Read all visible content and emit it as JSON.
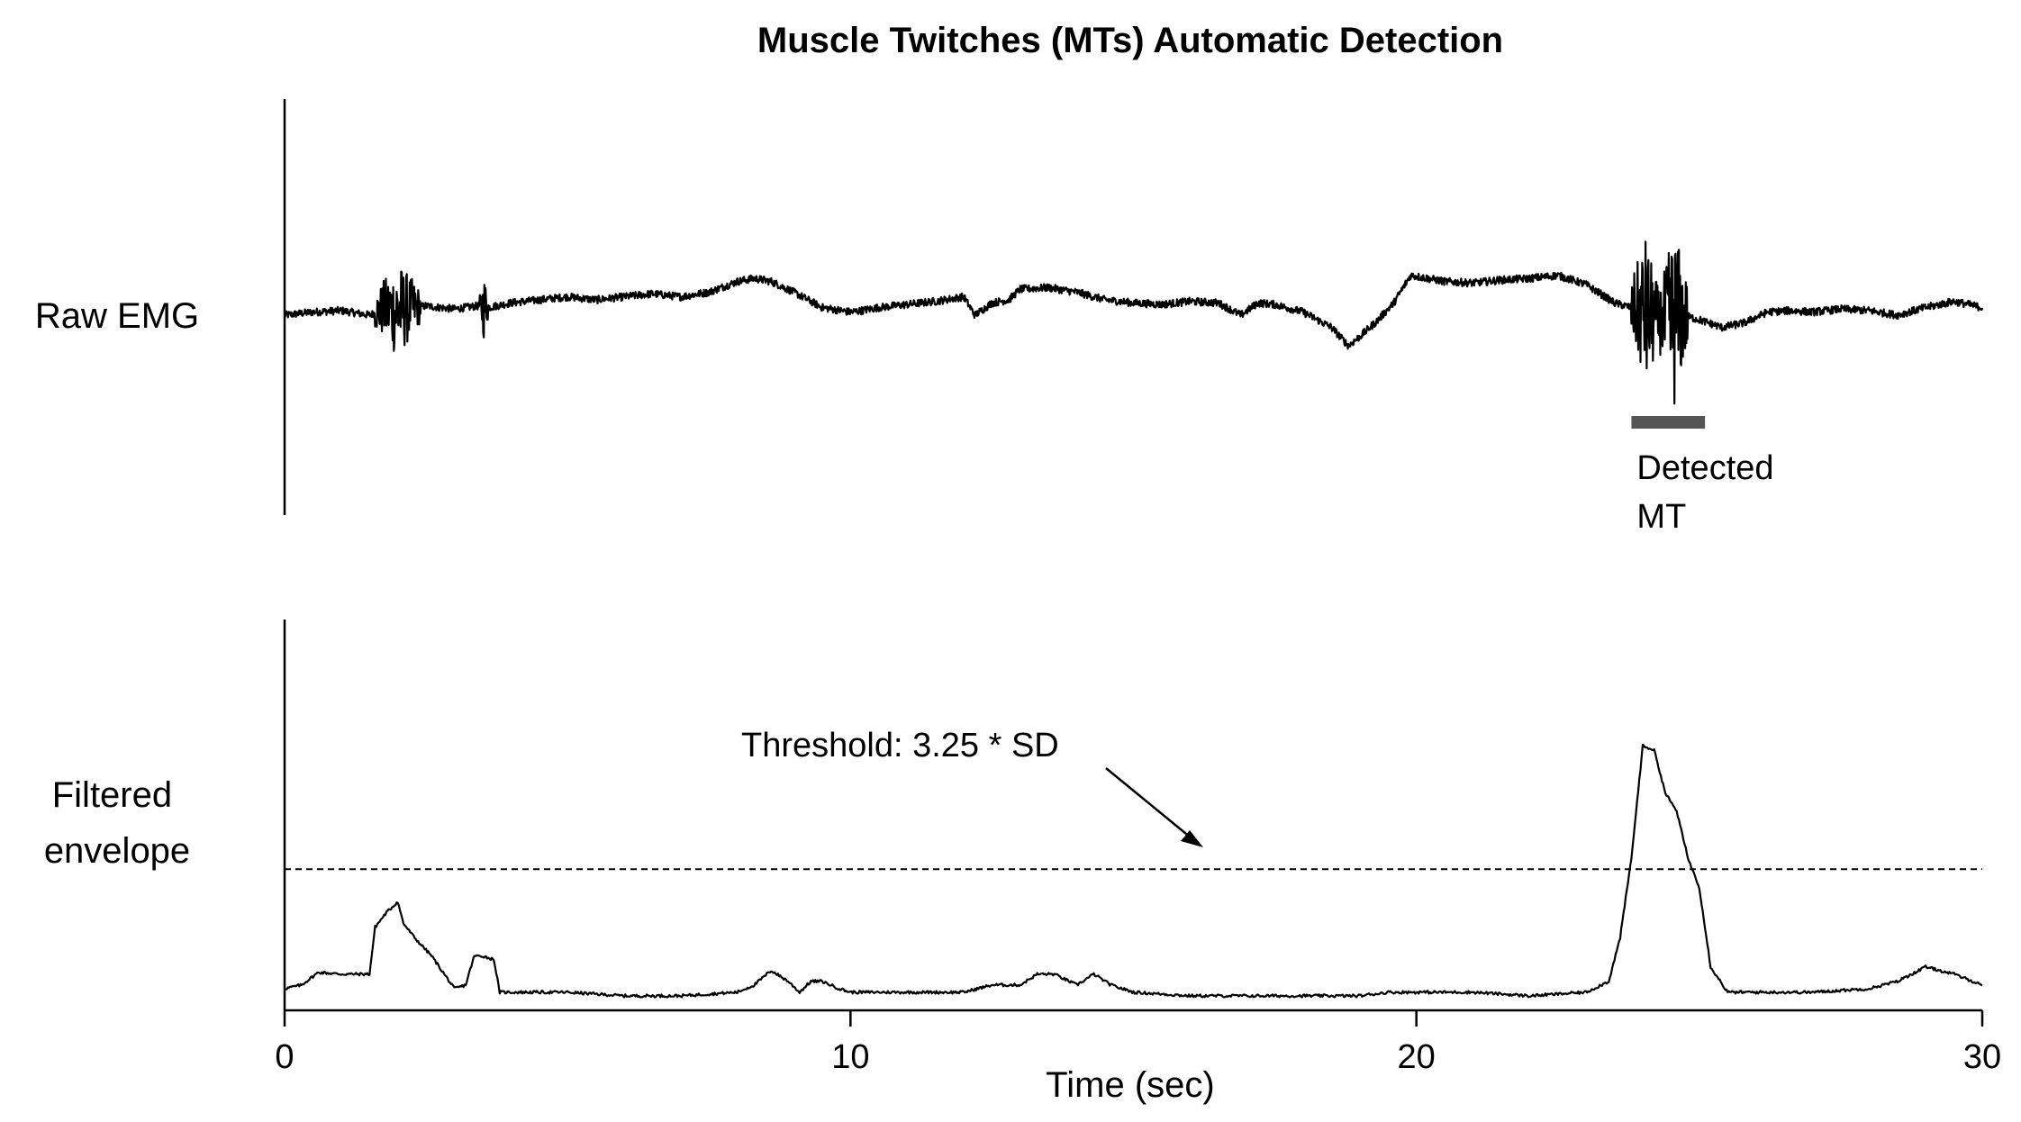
{
  "chart_data": {
    "type": "line",
    "title": "Muscle Twitches (MTs) Automatic Detection",
    "xlabel": "Time (sec)",
    "xlim": [
      0,
      30
    ],
    "xticks": [
      "0",
      "10",
      "20",
      "30"
    ],
    "panels": [
      {
        "label_lines": [
          "Raw EMG"
        ],
        "ylim": [
          -1,
          1
        ],
        "annotation": {
          "label_lines": [
            "Detected",
            "MT"
          ],
          "x_start": 23.8,
          "x_end": 25.1,
          "bar_color": "#555555"
        },
        "series": {
          "x": [
            0,
            0.5,
            1.0,
            1.5,
            1.75,
            2.0,
            2.25,
            2.5,
            3.0,
            3.4,
            3.6,
            4.0,
            4.5,
            5.0,
            5.5,
            6.0,
            6.5,
            7.0,
            7.5,
            8.0,
            8.3,
            8.6,
            9.0,
            9.5,
            10.0,
            10.2,
            10.5,
            11.0,
            11.5,
            12.0,
            12.2,
            12.5,
            12.8,
            13.0,
            13.5,
            14.0,
            14.5,
            15.0,
            15.5,
            16.0,
            16.5,
            16.9,
            17.2,
            17.5,
            18.0,
            18.5,
            18.8,
            19.0,
            19.3,
            19.6,
            19.9,
            20.5,
            21.0,
            21.5,
            22.0,
            22.5,
            23.0,
            23.5,
            23.8,
            24.1,
            24.4,
            24.7,
            25.0,
            25.4,
            25.8,
            26.2,
            26.6,
            27.0,
            27.5,
            28.0,
            28.5,
            29.0,
            29.5,
            30.0
          ],
          "y": [
            0.0,
            0.02,
            0.03,
            0.0,
            0.04,
            0.03,
            0.05,
            0.06,
            0.04,
            0.06,
            0.05,
            0.08,
            0.1,
            0.12,
            0.1,
            0.12,
            0.14,
            0.12,
            0.15,
            0.22,
            0.24,
            0.22,
            0.15,
            0.05,
            0.02,
            0.03,
            0.05,
            0.07,
            0.09,
            0.12,
            0.0,
            0.08,
            0.1,
            0.17,
            0.18,
            0.15,
            0.1,
            0.08,
            0.07,
            0.09,
            0.08,
            0.0,
            0.08,
            0.07,
            0.02,
            -0.08,
            -0.2,
            -0.14,
            -0.04,
            0.08,
            0.26,
            0.22,
            0.21,
            0.23,
            0.24,
            0.26,
            0.2,
            0.08,
            0.05,
            0.0,
            -0.05,
            0.0,
            -0.03,
            -0.08,
            -0.05,
            0.02,
            0.03,
            0.02,
            0.04,
            0.03,
            0.0,
            0.05,
            0.09,
            0.05
          ]
        },
        "bursts": [
          {
            "x_start": 1.6,
            "x_end": 2.4,
            "amplitude": 0.32
          },
          {
            "x_start": 3.45,
            "x_end": 3.6,
            "amplitude": 0.22
          },
          {
            "x_start": 23.8,
            "x_end": 24.3,
            "amplitude": 0.5
          },
          {
            "x_start": 24.3,
            "x_end": 24.8,
            "amplitude": 0.6
          }
        ]
      },
      {
        "label_lines": [
          "Filtered",
          "envelope"
        ],
        "ylim": [
          0,
          1
        ],
        "threshold": {
          "value": 0.39,
          "label": "Threshold: 3.25 * SD"
        },
        "series": {
          "x": [
            0,
            0.3,
            0.6,
            1.0,
            1.3,
            1.5,
            1.6,
            1.8,
            2.0,
            2.1,
            2.3,
            2.6,
            3.0,
            3.2,
            3.35,
            3.5,
            3.7,
            3.8,
            4.0,
            5.0,
            6.0,
            7.0,
            8.0,
            8.3,
            8.6,
            8.9,
            9.1,
            9.3,
            9.5,
            9.8,
            10.0,
            11.0,
            12.0,
            12.5,
            13.0,
            13.3,
            13.6,
            14.0,
            14.3,
            14.6,
            15.0,
            16.0,
            17.0,
            18.0,
            19.0,
            19.5,
            20.0,
            21.0,
            22.0,
            23.0,
            23.4,
            23.6,
            23.8,
            24.0,
            24.2,
            24.4,
            24.6,
            24.8,
            25.0,
            25.2,
            25.5,
            26.0,
            26.5,
            27.0,
            28.0,
            28.5,
            29.0,
            29.5,
            30.0
          ],
          "y": [
            0.06,
            0.07,
            0.105,
            0.1,
            0.1,
            0.1,
            0.23,
            0.27,
            0.3,
            0.24,
            0.2,
            0.15,
            0.06,
            0.07,
            0.15,
            0.15,
            0.14,
            0.05,
            0.05,
            0.05,
            0.04,
            0.04,
            0.05,
            0.07,
            0.11,
            0.08,
            0.05,
            0.08,
            0.08,
            0.06,
            0.05,
            0.05,
            0.05,
            0.07,
            0.07,
            0.1,
            0.1,
            0.07,
            0.1,
            0.07,
            0.05,
            0.04,
            0.04,
            0.04,
            0.04,
            0.05,
            0.05,
            0.05,
            0.04,
            0.05,
            0.08,
            0.2,
            0.42,
            0.73,
            0.72,
            0.6,
            0.55,
            0.42,
            0.34,
            0.12,
            0.05,
            0.05,
            0.05,
            0.05,
            0.06,
            0.08,
            0.12,
            0.1,
            0.07
          ]
        }
      }
    ]
  }
}
